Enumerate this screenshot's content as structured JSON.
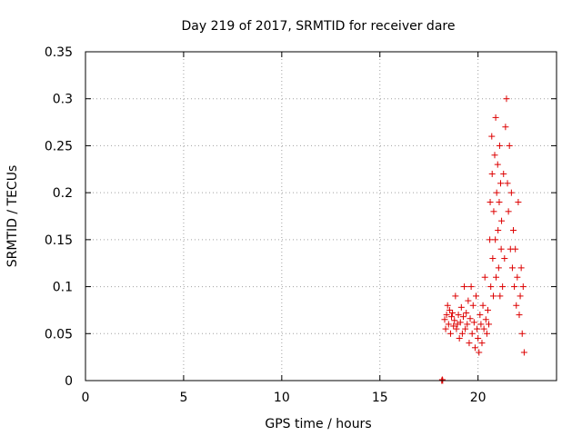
{
  "chart_data": {
    "type": "scatter",
    "title": "Day 219 of 2017, SRMTID for receiver dare",
    "xlabel": "GPS time / hours",
    "ylabel": "SRMTID / TECUs",
    "xlim": [
      0,
      24
    ],
    "ylim": [
      0,
      0.35
    ],
    "xticks": [
      0,
      5,
      10,
      15,
      20
    ],
    "xtick_labels": [
      "0",
      "5",
      "10",
      "15",
      "20"
    ],
    "yticks": [
      0,
      0.05,
      0.1,
      0.15,
      0.2,
      0.25,
      0.3,
      0.35
    ],
    "ytick_labels": [
      "0",
      "0.05",
      "0.1",
      "0.15",
      "0.2",
      "0.25",
      "0.3",
      "0.35"
    ],
    "grid": true,
    "marker": "+",
    "color": "#dd0000",
    "series": [
      {
        "name": "SRMTID",
        "points": [
          [
            18.15,
            0.0
          ],
          [
            18.18,
            0.001
          ],
          [
            18.2,
            0.0
          ],
          [
            18.3,
            0.065
          ],
          [
            18.35,
            0.055
          ],
          [
            18.4,
            0.07
          ],
          [
            18.45,
            0.08
          ],
          [
            18.5,
            0.06
          ],
          [
            18.55,
            0.075
          ],
          [
            18.6,
            0.05
          ],
          [
            18.65,
            0.068
          ],
          [
            18.7,
            0.072
          ],
          [
            18.75,
            0.058
          ],
          [
            18.8,
            0.064
          ],
          [
            18.85,
            0.09
          ],
          [
            18.9,
            0.055
          ],
          [
            18.95,
            0.06
          ],
          [
            19.0,
            0.07
          ],
          [
            19.05,
            0.045
          ],
          [
            19.1,
            0.062
          ],
          [
            19.15,
            0.078
          ],
          [
            19.2,
            0.05
          ],
          [
            19.25,
            0.068
          ],
          [
            19.3,
            0.1
          ],
          [
            19.35,
            0.055
          ],
          [
            19.4,
            0.072
          ],
          [
            19.45,
            0.06
          ],
          [
            19.5,
            0.085
          ],
          [
            19.55,
            0.04
          ],
          [
            19.6,
            0.066
          ],
          [
            19.65,
            0.1
          ],
          [
            19.7,
            0.05
          ],
          [
            19.75,
            0.08
          ],
          [
            19.8,
            0.062
          ],
          [
            19.85,
            0.035
          ],
          [
            19.9,
            0.09
          ],
          [
            19.95,
            0.055
          ],
          [
            20.0,
            0.045
          ],
          [
            20.05,
            0.03
          ],
          [
            20.1,
            0.07
          ],
          [
            20.15,
            0.06
          ],
          [
            20.2,
            0.04
          ],
          [
            20.25,
            0.08
          ],
          [
            20.3,
            0.055
          ],
          [
            20.35,
            0.11
          ],
          [
            20.4,
            0.065
          ],
          [
            20.45,
            0.05
          ],
          [
            20.5,
            0.075
          ],
          [
            20.55,
            0.06
          ],
          [
            20.6,
            0.15
          ],
          [
            20.62,
            0.19
          ],
          [
            20.65,
            0.1
          ],
          [
            20.7,
            0.26
          ],
          [
            20.72,
            0.22
          ],
          [
            20.75,
            0.13
          ],
          [
            20.78,
            0.09
          ],
          [
            20.8,
            0.18
          ],
          [
            20.85,
            0.24
          ],
          [
            20.88,
            0.15
          ],
          [
            20.9,
            0.28
          ],
          [
            20.92,
            0.11
          ],
          [
            20.95,
            0.2
          ],
          [
            21.0,
            0.23
          ],
          [
            21.02,
            0.16
          ],
          [
            21.05,
            0.12
          ],
          [
            21.08,
            0.19
          ],
          [
            21.1,
            0.25
          ],
          [
            21.12,
            0.09
          ],
          [
            21.15,
            0.21
          ],
          [
            21.18,
            0.14
          ],
          [
            21.2,
            0.17
          ],
          [
            21.25,
            0.1
          ],
          [
            21.3,
            0.22
          ],
          [
            21.35,
            0.13
          ],
          [
            21.4,
            0.27
          ],
          [
            21.45,
            0.3
          ],
          [
            21.5,
            0.21
          ],
          [
            21.55,
            0.18
          ],
          [
            21.6,
            0.25
          ],
          [
            21.65,
            0.14
          ],
          [
            21.7,
            0.2
          ],
          [
            21.75,
            0.12
          ],
          [
            21.8,
            0.16
          ],
          [
            21.85,
            0.1
          ],
          [
            21.9,
            0.14
          ],
          [
            21.95,
            0.08
          ],
          [
            22.0,
            0.11
          ],
          [
            22.05,
            0.19
          ],
          [
            22.1,
            0.07
          ],
          [
            22.15,
            0.09
          ],
          [
            22.2,
            0.12
          ],
          [
            22.25,
            0.05
          ],
          [
            22.3,
            0.1
          ],
          [
            22.35,
            0.03
          ]
        ]
      }
    ]
  }
}
